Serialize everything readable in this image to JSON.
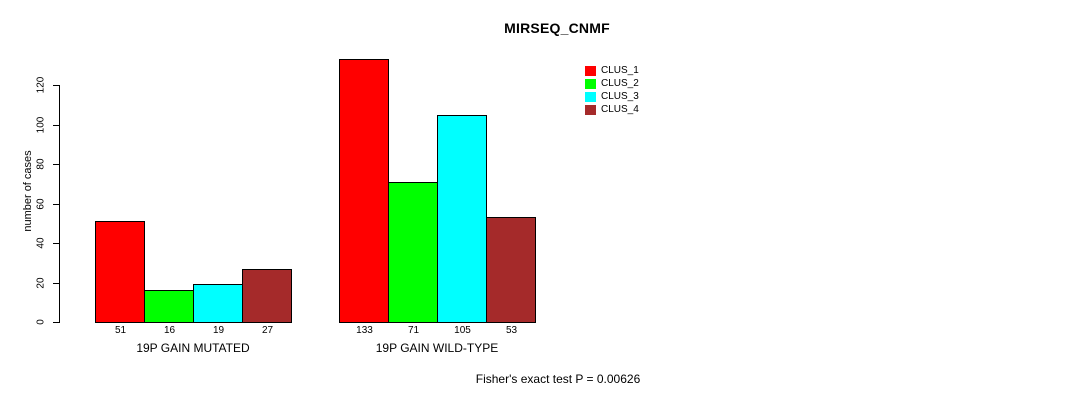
{
  "title": "MIRSEQ_CNMF",
  "footer": "Fisher's exact test P = 0.00626",
  "chart_data": {
    "type": "bar",
    "categories": [
      "19P GAIN MUTATED",
      "19P GAIN WILD-TYPE"
    ],
    "series": [
      {
        "name": "CLUS_1",
        "color": "#FF0000",
        "values": [
          51,
          133
        ]
      },
      {
        "name": "CLUS_2",
        "color": "#00FF00",
        "values": [
          16,
          71
        ]
      },
      {
        "name": "CLUS_3",
        "color": "#00FFFF",
        "values": [
          19,
          105
        ]
      },
      {
        "name": "CLUS_4",
        "color": "#A52A2A",
        "values": [
          27,
          53
        ]
      }
    ],
    "ylabel": "number of cases",
    "yticks": [
      0,
      20,
      40,
      60,
      80,
      100,
      120
    ],
    "ylim": [
      0,
      133
    ],
    "values_shown_below_bars": true,
    "legend_position": "top-right",
    "grid": false,
    "bar_border_color": "#000000"
  }
}
